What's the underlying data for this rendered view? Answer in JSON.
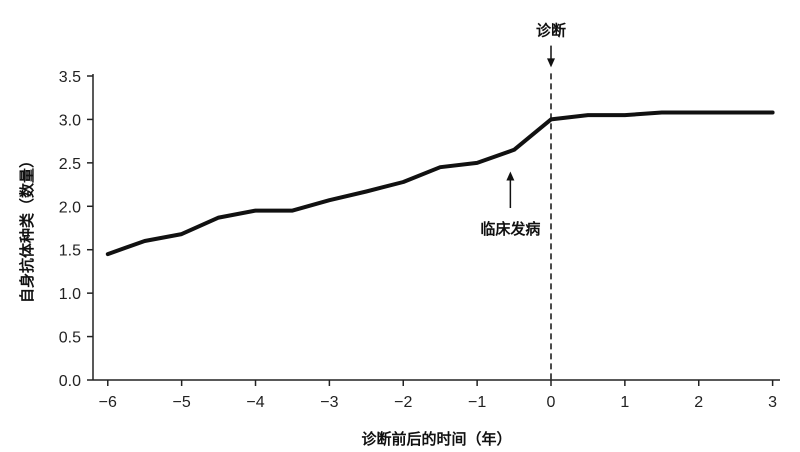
{
  "chart_data": {
    "type": "line",
    "xlabel": "诊断前后的时间（年）",
    "ylabel": "自身抗体种类（数量）",
    "xlim": [
      -6.2,
      3.1
    ],
    "ylim": [
      0,
      3.5
    ],
    "x_ticks": [
      -6,
      -5,
      -4,
      -3,
      -2,
      -1,
      0,
      1,
      2,
      3
    ],
    "x_tick_labels": [
      "−6",
      "−5",
      "−4",
      "−3",
      "−2",
      "−1",
      "0",
      "1",
      "2",
      "3"
    ],
    "y_ticks": [
      0,
      0.5,
      1.0,
      1.5,
      2.0,
      2.5,
      3.0,
      3.5
    ],
    "y_tick_labels": [
      "0.0",
      "0.5",
      "1.0",
      "1.5",
      "2.0",
      "2.5",
      "3.0",
      "3.5"
    ],
    "grid": false,
    "series": [
      {
        "x": [
          -6,
          -5.5,
          -5,
          -4.5,
          -4,
          -3.5,
          -3,
          -2.5,
          -2,
          -1.5,
          -1,
          -0.5,
          0,
          0.5,
          1,
          1.5,
          2,
          3
        ],
        "y": [
          1.45,
          1.6,
          1.68,
          1.87,
          1.95,
          1.95,
          2.07,
          2.17,
          2.28,
          2.45,
          2.5,
          2.65,
          3.0,
          3.05,
          3.05,
          3.08,
          3.08,
          3.08
        ]
      }
    ],
    "annotations": [
      {
        "id": "diagnosis",
        "text": "诊断",
        "x": 0,
        "arrow_from_y": 3.85,
        "arrow_to_y": 3.6,
        "dashed_vertical_line": true
      },
      {
        "id": "onset",
        "text": "临床发病",
        "x": -0.55,
        "arrow_from_y": 1.98,
        "arrow_to_y": 2.4
      }
    ]
  }
}
